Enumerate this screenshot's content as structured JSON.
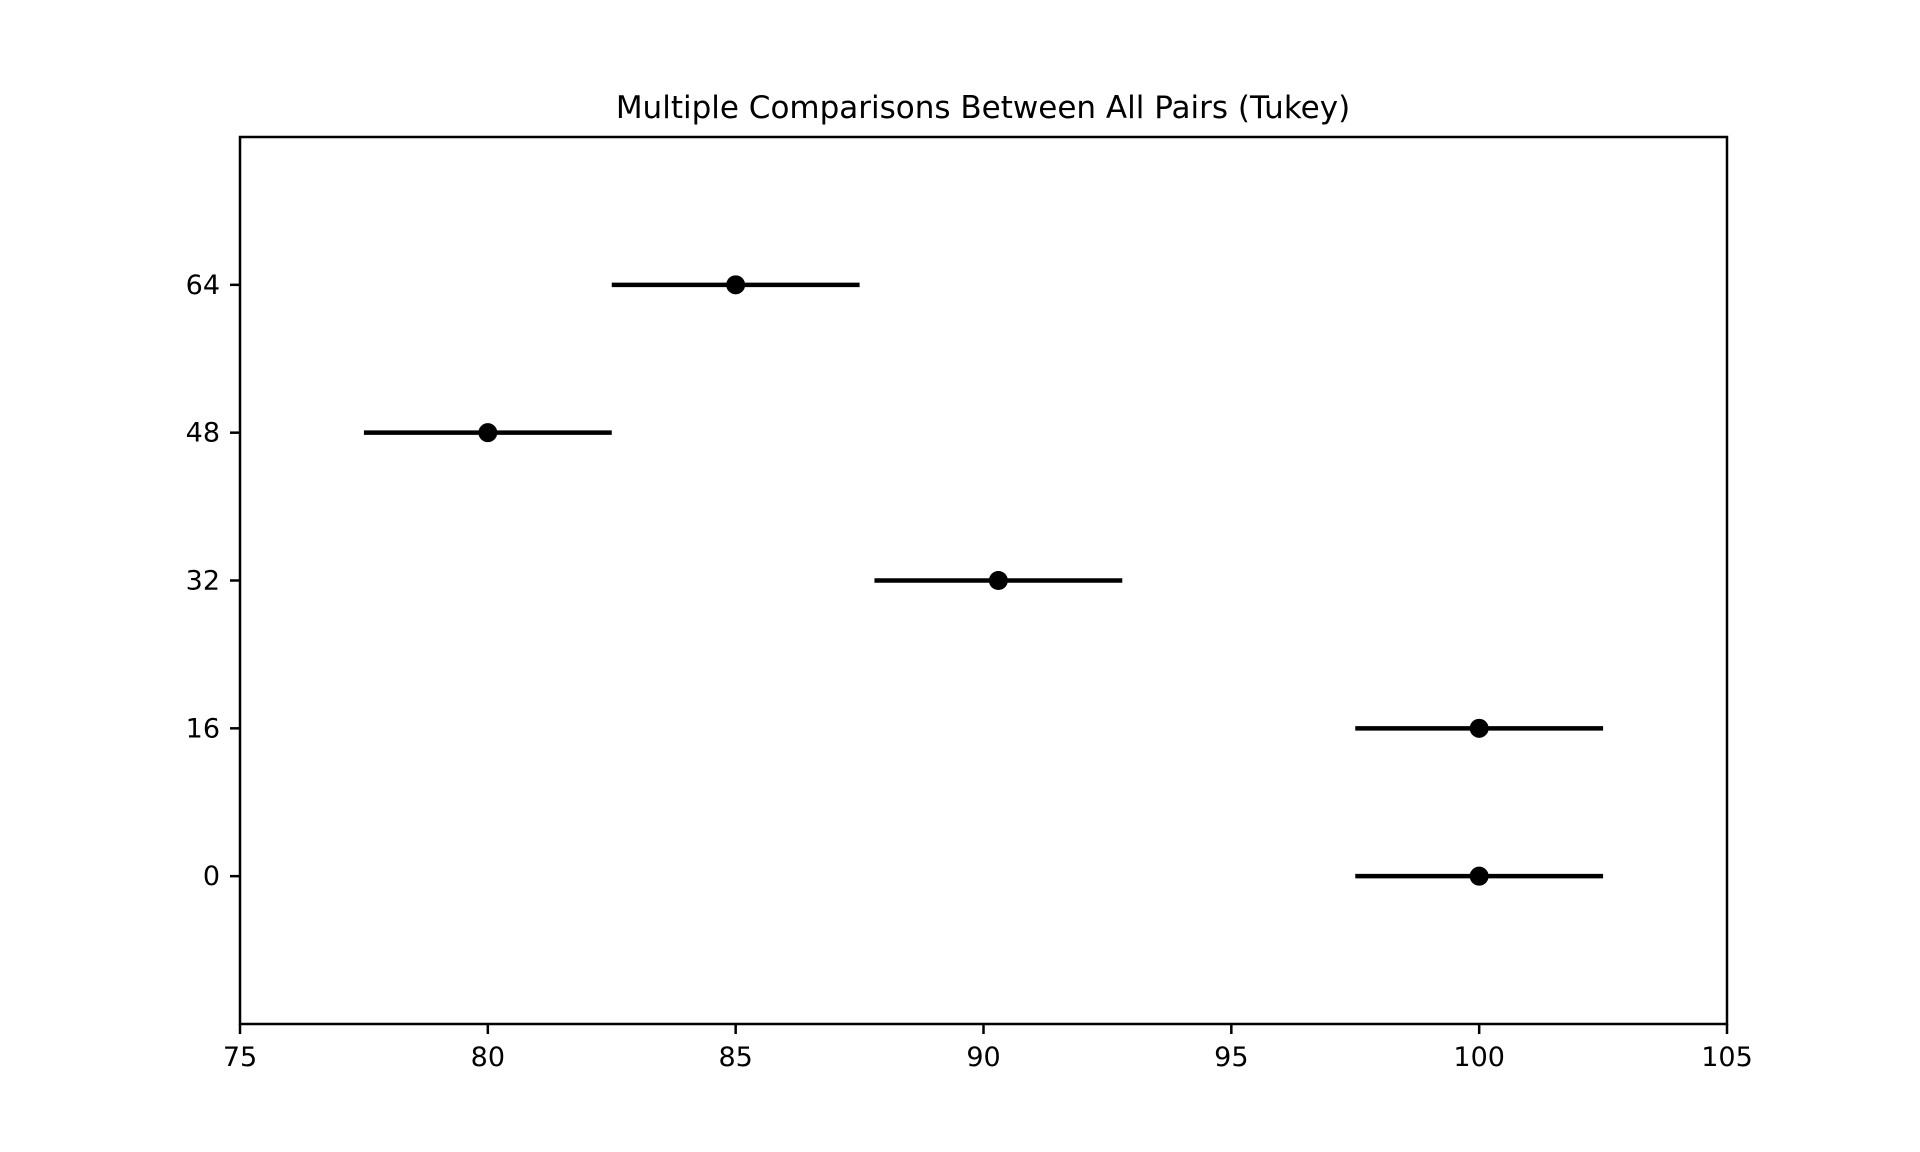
{
  "figure": {
    "background": "#ffffff"
  },
  "chart_data": {
    "type": "scatter",
    "subtype": "horizontal-errorbar-tukey-simultaneous-ci",
    "title": "Multiple Comparisons Between All Pairs (Tukey)",
    "xlabel": "",
    "ylabel": "",
    "x_ticks": [
      75,
      80,
      85,
      90,
      95,
      100,
      105
    ],
    "xlim": [
      75,
      105
    ],
    "ylim_positions": [
      0,
      6
    ],
    "grid": false,
    "legend": false,
    "groups": [
      {
        "label": "64",
        "position": 5,
        "mean": 85.0,
        "ci_low": 82.5,
        "ci_high": 87.5
      },
      {
        "label": "48",
        "position": 4,
        "mean": 80.0,
        "ci_low": 77.5,
        "ci_high": 82.5
      },
      {
        "label": "32",
        "position": 3,
        "mean": 90.3,
        "ci_low": 87.8,
        "ci_high": 92.8
      },
      {
        "label": "16",
        "position": 2,
        "mean": 100.0,
        "ci_low": 97.5,
        "ci_high": 102.5
      },
      {
        "label": "0",
        "position": 1,
        "mean": 100.0,
        "ci_low": 97.5,
        "ci_high": 102.5
      }
    ],
    "colors": {
      "line": "#000000",
      "marker": "#000000",
      "spine": "#000000",
      "tick": "#000000",
      "background": "#ffffff"
    }
  }
}
